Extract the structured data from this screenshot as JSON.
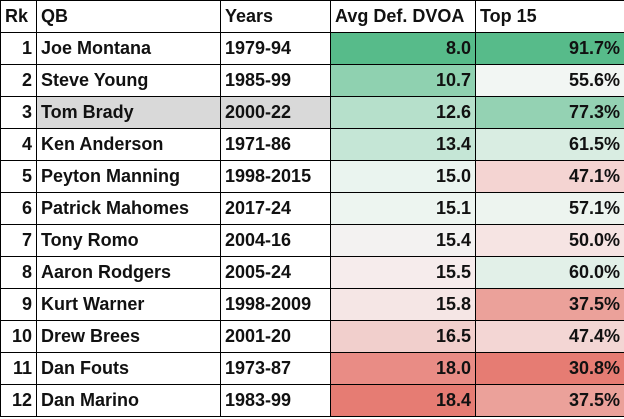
{
  "headers": {
    "rank": "Rk",
    "qb": "QB",
    "years": "Years",
    "dvoa": "Avg Def. DVOA",
    "top15": "Top 15"
  },
  "rows": [
    {
      "rank": "1",
      "qb": "Joe Montana",
      "years": "1979-94",
      "dvoa": "8.0",
      "top15": "91.7%",
      "qb_bg": "#ffffff",
      "dvoa_bg": "#57bb8a",
      "top15_bg": "#57bb8a"
    },
    {
      "rank": "2",
      "qb": "Steve Young",
      "years": "1985-99",
      "dvoa": "10.7",
      "top15": "55.6%",
      "qb_bg": "#ffffff",
      "dvoa_bg": "#8fd1b0",
      "top15_bg": "#f2f6f3"
    },
    {
      "rank": "3",
      "qb": "Tom Brady",
      "years": "2000-22",
      "dvoa": "12.6",
      "top15": "77.3%",
      "qb_bg": "#d9d9d9",
      "dvoa_bg": "#b6e0cb",
      "top15_bg": "#94d2b3",
      "years_bg": "#d9d9d9"
    },
    {
      "rank": "4",
      "qb": "Ken Anderson",
      "years": "1971-86",
      "dvoa": "13.4",
      "top15": "61.5%",
      "qb_bg": "#ffffff",
      "dvoa_bg": "#c5e6d6",
      "top15_bg": "#d9ede2"
    },
    {
      "rank": "5",
      "qb": "Peyton Manning",
      "years": "1998-2015",
      "dvoa": "15.0",
      "top15": "47.1%",
      "qb_bg": "#ffffff",
      "dvoa_bg": "#eaf4ef",
      "top15_bg": "#f4d4d2"
    },
    {
      "rank": "6",
      "qb": "Patrick Mahomes",
      "years": "2017-24",
      "dvoa": "15.1",
      "top15": "57.1%",
      "qb_bg": "#ffffff",
      "dvoa_bg": "#edf5f0",
      "top15_bg": "#edf4ef"
    },
    {
      "rank": "7",
      "qb": "Tony Romo",
      "years": "2004-16",
      "dvoa": "15.4",
      "top15": "50.0%",
      "qb_bg": "#ffffff",
      "dvoa_bg": "#f3f2f1",
      "top15_bg": "#f6e4e3"
    },
    {
      "rank": "8",
      "qb": "Aaron Rodgers",
      "years": "2005-24",
      "dvoa": "15.5",
      "top15": "60.0%",
      "qb_bg": "#ffffff",
      "dvoa_bg": "#f6ecec",
      "top15_bg": "#e2f0e8"
    },
    {
      "rank": "9",
      "qb": "Kurt Warner",
      "years": "1998-2009",
      "dvoa": "15.8",
      "top15": "37.5%",
      "qb_bg": "#ffffff",
      "dvoa_bg": "#f5e6e5",
      "top15_bg": "#eba19a"
    },
    {
      "rank": "10",
      "qb": "Drew Brees",
      "years": "2001-20",
      "dvoa": "16.5",
      "top15": "47.4%",
      "qb_bg": "#ffffff",
      "dvoa_bg": "#f1cfcc",
      "top15_bg": "#f3d6d4"
    },
    {
      "rank": "11",
      "qb": "Dan Fouts",
      "years": "1973-87",
      "dvoa": "18.0",
      "top15": "30.8%",
      "qb_bg": "#ffffff",
      "dvoa_bg": "#e98c85",
      "top15_bg": "#e67c73"
    },
    {
      "rank": "12",
      "qb": "Dan Marino",
      "years": "1983-99",
      "dvoa": "18.4",
      "top15": "37.5%",
      "qb_bg": "#ffffff",
      "dvoa_bg": "#e67c73",
      "top15_bg": "#eba19a"
    }
  ]
}
